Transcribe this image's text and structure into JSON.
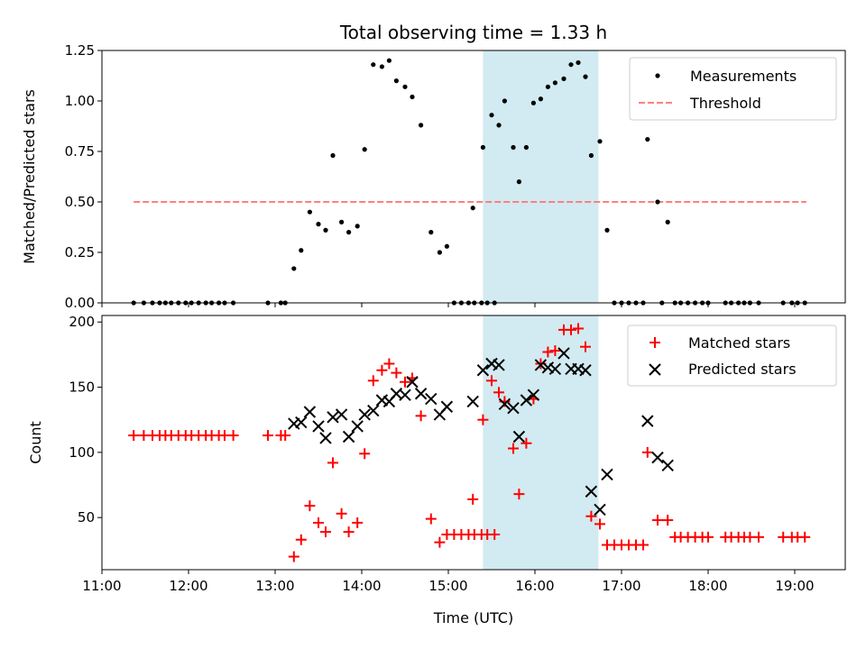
{
  "title": "Total observing time = 1.33 h",
  "colors": {
    "measurement": "#000000",
    "threshold": "#ff7f7f",
    "matched": "#ff0000",
    "predicted": "#000000",
    "highlight": "#add8e6"
  },
  "chart_data": [
    {
      "type": "scatter",
      "ylabel": "Matched/Predicted stars",
      "xlim": [
        "11:00",
        "19:35"
      ],
      "ylim": [
        0,
        1.25
      ],
      "yticks": [
        "0.00",
        "0.25",
        "0.50",
        "0.75",
        "1.00",
        "1.25"
      ],
      "highlight_span": [
        "15:24",
        "16:44"
      ],
      "legend": {
        "placement": "upper right",
        "entries": [
          "Measurements",
          "Threshold"
        ]
      },
      "threshold": {
        "name": "Threshold",
        "value": 0.5,
        "x_range": [
          "11:22",
          "19:08"
        ]
      },
      "series": [
        {
          "name": "Measurements",
          "points": [
            [
              "11:22",
              0
            ],
            [
              "11:29",
              0
            ],
            [
              "11:35",
              0
            ],
            [
              "11:40",
              0
            ],
            [
              "11:44",
              0
            ],
            [
              "11:48",
              0
            ],
            [
              "11:53",
              0
            ],
            [
              "11:58",
              0
            ],
            [
              "12:02",
              0
            ],
            [
              "12:07",
              0
            ],
            [
              "12:12",
              0
            ],
            [
              "12:16",
              0
            ],
            [
              "12:21",
              0
            ],
            [
              "12:25",
              0
            ],
            [
              "12:31",
              0
            ],
            [
              "12:55",
              0
            ],
            [
              "13:04",
              0
            ],
            [
              "13:07",
              0
            ],
            [
              "13:13",
              0.17
            ],
            [
              "13:18",
              0.26
            ],
            [
              "13:24",
              0.45
            ],
            [
              "13:30",
              0.39
            ],
            [
              "13:35",
              0.36
            ],
            [
              "13:40",
              0.73
            ],
            [
              "13:46",
              0.4
            ],
            [
              "13:51",
              0.35
            ],
            [
              "13:57",
              0.38
            ],
            [
              "14:02",
              0.76
            ],
            [
              "14:08",
              1.18
            ],
            [
              "14:14",
              1.17
            ],
            [
              "14:19",
              1.2
            ],
            [
              "14:24",
              1.1
            ],
            [
              "14:30",
              1.07
            ],
            [
              "14:35",
              1.02
            ],
            [
              "14:41",
              0.88
            ],
            [
              "14:48",
              0.35
            ],
            [
              "14:54",
              0.25
            ],
            [
              "14:59",
              0.28
            ],
            [
              "15:04",
              0
            ],
            [
              "15:09",
              0
            ],
            [
              "15:14",
              0
            ],
            [
              "15:18",
              0
            ],
            [
              "15:23",
              0
            ],
            [
              "15:27",
              0
            ],
            [
              "15:32",
              0
            ],
            [
              "15:17",
              0.47
            ],
            [
              "15:24",
              0.77
            ],
            [
              "15:30",
              0.93
            ],
            [
              "15:35",
              0.88
            ],
            [
              "15:39",
              1.0
            ],
            [
              "15:45",
              0.77
            ],
            [
              "15:49",
              0.6
            ],
            [
              "15:54",
              0.77
            ],
            [
              "15:59",
              0.99
            ],
            [
              "16:04",
              1.01
            ],
            [
              "16:09",
              1.07
            ],
            [
              "16:14",
              1.09
            ],
            [
              "16:20",
              1.11
            ],
            [
              "16:25",
              1.18
            ],
            [
              "16:30",
              1.19
            ],
            [
              "16:35",
              1.12
            ],
            [
              "16:39",
              0.73
            ],
            [
              "16:45",
              0.8
            ],
            [
              "16:50",
              0.36
            ],
            [
              "16:55",
              0
            ],
            [
              "17:00",
              0
            ],
            [
              "17:05",
              0
            ],
            [
              "17:10",
              0
            ],
            [
              "17:15",
              0
            ],
            [
              "17:18",
              0.81
            ],
            [
              "17:25",
              0.5
            ],
            [
              "17:32",
              0.4
            ],
            [
              "17:28",
              0
            ],
            [
              "17:37",
              0
            ],
            [
              "17:41",
              0
            ],
            [
              "17:46",
              0
            ],
            [
              "17:51",
              0
            ],
            [
              "17:56",
              0
            ],
            [
              "18:00",
              0
            ],
            [
              "18:12",
              0
            ],
            [
              "18:16",
              0
            ],
            [
              "18:21",
              0
            ],
            [
              "18:25",
              0
            ],
            [
              "18:29",
              0
            ],
            [
              "18:35",
              0
            ],
            [
              "18:52",
              0
            ],
            [
              "18:58",
              0
            ],
            [
              "19:02",
              0
            ],
            [
              "19:07",
              0
            ]
          ]
        }
      ]
    },
    {
      "type": "scatter",
      "xlabel": "Time (UTC)",
      "ylabel": "Count",
      "xlim": [
        "11:00",
        "19:35"
      ],
      "ylim": [
        10,
        205
      ],
      "xticks": [
        "11:00",
        "12:00",
        "13:00",
        "14:00",
        "15:00",
        "16:00",
        "17:00",
        "18:00",
        "19:00"
      ],
      "yticks": [
        "50",
        "100",
        "150",
        "200"
      ],
      "highlight_span": [
        "15:24",
        "16:44"
      ],
      "legend": {
        "placement": "upper right",
        "entries": [
          "Matched stars",
          "Predicted stars"
        ]
      },
      "series": [
        {
          "name": "Matched stars",
          "points": [
            [
              "11:22",
              113
            ],
            [
              "11:29",
              113
            ],
            [
              "11:35",
              113
            ],
            [
              "11:40",
              113
            ],
            [
              "11:44",
              113
            ],
            [
              "11:48",
              113
            ],
            [
              "11:53",
              113
            ],
            [
              "11:58",
              113
            ],
            [
              "12:02",
              113
            ],
            [
              "12:07",
              113
            ],
            [
              "12:12",
              113
            ],
            [
              "12:16",
              113
            ],
            [
              "12:21",
              113
            ],
            [
              "12:25",
              113
            ],
            [
              "12:31",
              113
            ],
            [
              "12:55",
              113
            ],
            [
              "13:04",
              113
            ],
            [
              "13:07",
              113
            ],
            [
              "13:13",
              20
            ],
            [
              "13:18",
              33
            ],
            [
              "13:24",
              59
            ],
            [
              "13:30",
              46
            ],
            [
              "13:35",
              39
            ],
            [
              "13:40",
              92
            ],
            [
              "13:46",
              53
            ],
            [
              "13:51",
              39
            ],
            [
              "13:57",
              46
            ],
            [
              "14:02",
              99
            ],
            [
              "14:08",
              155
            ],
            [
              "14:14",
              163
            ],
            [
              "14:19",
              168
            ],
            [
              "14:24",
              161
            ],
            [
              "14:30",
              154
            ],
            [
              "14:35",
              157
            ],
            [
              "14:41",
              128
            ],
            [
              "14:48",
              49
            ],
            [
              "14:54",
              31
            ],
            [
              "14:59",
              37
            ],
            [
              "15:04",
              37
            ],
            [
              "15:09",
              37
            ],
            [
              "15:14",
              37
            ],
            [
              "15:18",
              37
            ],
            [
              "15:23",
              37
            ],
            [
              "15:27",
              37
            ],
            [
              "15:32",
              37
            ],
            [
              "15:17",
              64
            ],
            [
              "15:24",
              125
            ],
            [
              "15:30",
              155
            ],
            [
              "15:35",
              146
            ],
            [
              "15:39",
              139
            ],
            [
              "15:45",
              103
            ],
            [
              "15:49",
              68
            ],
            [
              "15:54",
              107
            ],
            [
              "15:59",
              141
            ],
            [
              "16:04",
              168
            ],
            [
              "16:09",
              177
            ],
            [
              "16:14",
              178
            ],
            [
              "16:20",
              194
            ],
            [
              "16:25",
              194
            ],
            [
              "16:30",
              195
            ],
            [
              "16:35",
              181
            ],
            [
              "16:39",
              51
            ],
            [
              "16:45",
              45
            ],
            [
              "16:50",
              29
            ],
            [
              "16:55",
              29
            ],
            [
              "17:00",
              29
            ],
            [
              "17:05",
              29
            ],
            [
              "17:10",
              29
            ],
            [
              "17:15",
              29
            ],
            [
              "17:18",
              100
            ],
            [
              "17:25",
              48
            ],
            [
              "17:32",
              48
            ],
            [
              "17:37",
              35
            ],
            [
              "17:41",
              35
            ],
            [
              "17:46",
              35
            ],
            [
              "17:51",
              35
            ],
            [
              "17:56",
              35
            ],
            [
              "18:00",
              35
            ],
            [
              "18:12",
              35
            ],
            [
              "18:16",
              35
            ],
            [
              "18:21",
              35
            ],
            [
              "18:25",
              35
            ],
            [
              "18:29",
              35
            ],
            [
              "18:35",
              35
            ],
            [
              "18:52",
              35
            ],
            [
              "18:58",
              35
            ],
            [
              "19:02",
              35
            ],
            [
              "19:07",
              35
            ]
          ]
        },
        {
          "name": "Predicted stars",
          "points": [
            [
              "13:13",
              122
            ],
            [
              "13:18",
              123
            ],
            [
              "13:24",
              131
            ],
            [
              "13:30",
              120
            ],
            [
              "13:35",
              111
            ],
            [
              "13:40",
              127
            ],
            [
              "13:46",
              129
            ],
            [
              "13:51",
              112
            ],
            [
              "13:57",
              120
            ],
            [
              "14:02",
              129
            ],
            [
              "14:08",
              132
            ],
            [
              "14:14",
              140
            ],
            [
              "14:19",
              139
            ],
            [
              "14:24",
              145
            ],
            [
              "14:30",
              144
            ],
            [
              "14:35",
              154
            ],
            [
              "14:41",
              145
            ],
            [
              "14:48",
              141
            ],
            [
              "14:54",
              129
            ],
            [
              "14:59",
              135
            ],
            [
              "15:17",
              139
            ],
            [
              "15:24",
              163
            ],
            [
              "15:30",
              168
            ],
            [
              "15:35",
              167
            ],
            [
              "15:39",
              137
            ],
            [
              "15:45",
              134
            ],
            [
              "15:49",
              112
            ],
            [
              "15:54",
              140
            ],
            [
              "15:59",
              144
            ],
            [
              "16:04",
              167
            ],
            [
              "16:09",
              165
            ],
            [
              "16:14",
              164
            ],
            [
              "16:20",
              176
            ],
            [
              "16:25",
              164
            ],
            [
              "16:30",
              164
            ],
            [
              "16:35",
              163
            ],
            [
              "16:39",
              70
            ],
            [
              "16:45",
              56
            ],
            [
              "16:50",
              83
            ],
            [
              "17:18",
              124
            ],
            [
              "17:25",
              96
            ],
            [
              "17:32",
              90
            ]
          ]
        }
      ]
    }
  ]
}
